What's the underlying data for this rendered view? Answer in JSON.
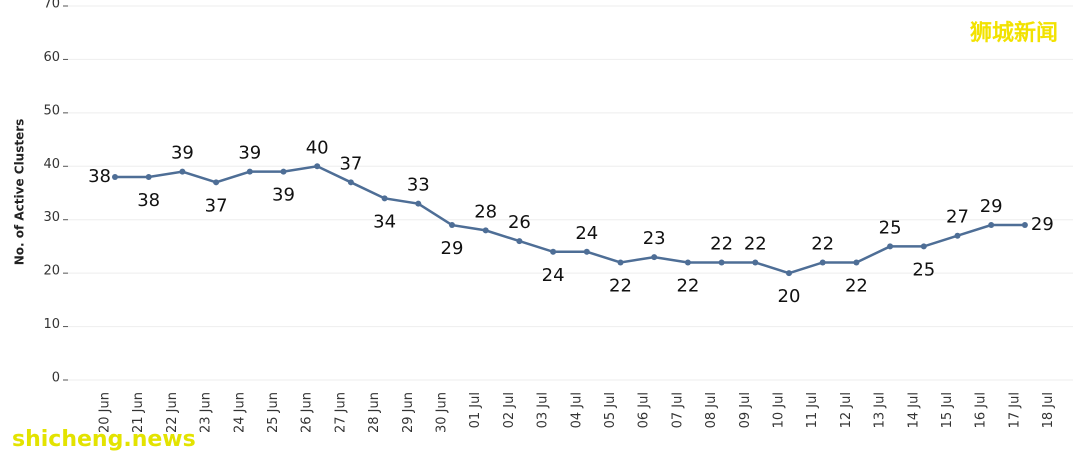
{
  "chart_data": {
    "type": "line",
    "y_label": "No. of Active Clusters",
    "categories": [
      "20 Jun",
      "21 Jun",
      "22 Jun",
      "23 Jun",
      "24 Jun",
      "25 Jun",
      "26 Jun",
      "27 Jun",
      "28 Jun",
      "29 Jun",
      "30 Jun",
      "01 Jul",
      "02 Jul",
      "03 Jul",
      "04 Jul",
      "05 Jul",
      "06 Jul",
      "07 Jul",
      "08 Jul",
      "09 Jul",
      "10 Jul",
      "11 Jul",
      "12 Jul",
      "13 Jul",
      "14 Jul",
      "15 Jul",
      "16 Jul",
      "17 Jul",
      "18 Jul"
    ],
    "values": [
      38,
      38,
      39,
      37,
      39,
      39,
      40,
      37,
      34,
      33,
      29,
      28,
      26,
      24,
      24,
      22,
      23,
      22,
      22,
      22,
      20,
      22,
      22,
      25,
      25,
      27,
      29,
      29,
      null
    ],
    "color": "#4e6e96",
    "ylim": [
      0,
      70
    ],
    "yticks": [
      0,
      10,
      20,
      30,
      40,
      50,
      60,
      70
    ],
    "grid": true,
    "watermarks": [
      "狮城新闻",
      "shicheng.news"
    ]
  }
}
